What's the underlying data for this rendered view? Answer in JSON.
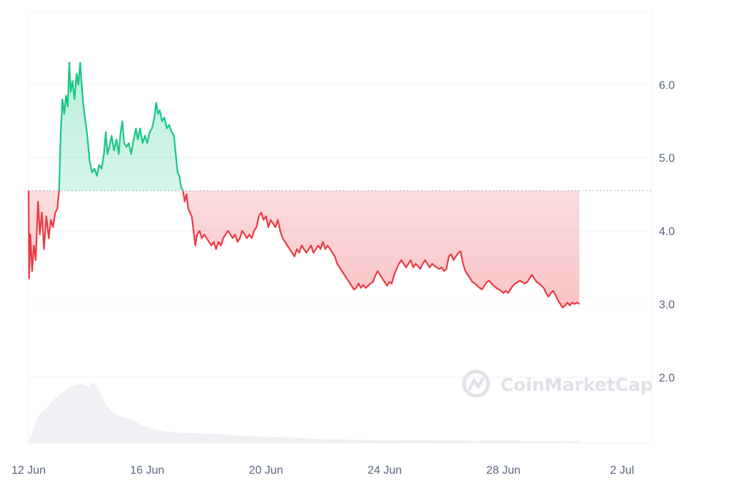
{
  "watermark": {
    "text": "CoinMarketCap"
  },
  "chart_data": {
    "type": "line",
    "title": "",
    "xlabel": "",
    "ylabel": "",
    "baseline": 4.55,
    "x_range": [
      0,
      21
    ],
    "x_unit": "days from 12 Jun",
    "ylim": [
      1.1,
      7.0
    ],
    "y_ticks": [
      {
        "value": 6.0,
        "label": "6.0"
      },
      {
        "value": 5.0,
        "label": "5.0"
      },
      {
        "value": 4.0,
        "label": "4.0"
      },
      {
        "value": 3.0,
        "label": "3.0"
      },
      {
        "value": 2.0,
        "label": "2.0"
      }
    ],
    "x_ticks": [
      {
        "value": 0,
        "label": "12 Jun"
      },
      {
        "value": 4,
        "label": "16 Jun"
      },
      {
        "value": 8,
        "label": "20 Jun"
      },
      {
        "value": 12,
        "label": "24 Jun"
      },
      {
        "value": 16,
        "label": "28 Jun"
      },
      {
        "value": 20,
        "label": "2 Jul"
      }
    ],
    "colors": {
      "up": "#16c784",
      "down": "#ea3943",
      "grid": "#eff2f5",
      "volume": "#eef0f3"
    },
    "grid": true,
    "series": [
      {
        "values": [
          [
            0.0,
            4.55
          ],
          [
            0.02,
            3.35
          ],
          [
            0.06,
            3.95
          ],
          [
            0.12,
            3.45
          ],
          [
            0.18,
            3.8
          ],
          [
            0.24,
            3.6
          ],
          [
            0.32,
            4.4
          ],
          [
            0.38,
            3.95
          ],
          [
            0.45,
            4.25
          ],
          [
            0.52,
            3.75
          ],
          [
            0.6,
            4.2
          ],
          [
            0.68,
            3.9
          ],
          [
            0.75,
            4.15
          ],
          [
            0.82,
            4.05
          ],
          [
            0.9,
            4.25
          ],
          [
            0.97,
            4.3
          ],
          [
            1.03,
            4.55
          ],
          [
            1.08,
            5.3
          ],
          [
            1.14,
            5.8
          ],
          [
            1.2,
            5.6
          ],
          [
            1.26,
            5.85
          ],
          [
            1.32,
            5.7
          ],
          [
            1.37,
            6.3
          ],
          [
            1.42,
            5.9
          ],
          [
            1.48,
            6.05
          ],
          [
            1.55,
            5.8
          ],
          [
            1.62,
            6.15
          ],
          [
            1.68,
            6.0
          ],
          [
            1.74,
            6.3
          ],
          [
            1.78,
            6.05
          ],
          [
            1.84,
            5.75
          ],
          [
            1.9,
            5.55
          ],
          [
            1.98,
            5.3
          ],
          [
            2.06,
            4.95
          ],
          [
            2.14,
            4.8
          ],
          [
            2.22,
            4.85
          ],
          [
            2.3,
            4.75
          ],
          [
            2.38,
            4.9
          ],
          [
            2.46,
            4.85
          ],
          [
            2.54,
            5.05
          ],
          [
            2.6,
            5.35
          ],
          [
            2.66,
            5.05
          ],
          [
            2.72,
            5.15
          ],
          [
            2.8,
            5.3
          ],
          [
            2.88,
            5.1
          ],
          [
            2.96,
            5.25
          ],
          [
            3.04,
            5.05
          ],
          [
            3.1,
            5.35
          ],
          [
            3.16,
            5.5
          ],
          [
            3.22,
            5.2
          ],
          [
            3.3,
            5.15
          ],
          [
            3.38,
            5.2
          ],
          [
            3.46,
            5.05
          ],
          [
            3.54,
            5.25
          ],
          [
            3.62,
            5.4
          ],
          [
            3.68,
            5.25
          ],
          [
            3.76,
            5.4
          ],
          [
            3.84,
            5.2
          ],
          [
            3.92,
            5.3
          ],
          [
            4.0,
            5.2
          ],
          [
            4.08,
            5.35
          ],
          [
            4.16,
            5.4
          ],
          [
            4.24,
            5.55
          ],
          [
            4.3,
            5.75
          ],
          [
            4.36,
            5.6
          ],
          [
            4.42,
            5.65
          ],
          [
            4.5,
            5.5
          ],
          [
            4.58,
            5.55
          ],
          [
            4.66,
            5.4
          ],
          [
            4.74,
            5.45
          ],
          [
            4.82,
            5.35
          ],
          [
            4.9,
            5.3
          ],
          [
            4.96,
            5.05
          ],
          [
            5.02,
            4.8
          ],
          [
            5.08,
            4.75
          ],
          [
            5.14,
            4.6
          ],
          [
            5.2,
            4.55
          ],
          [
            5.26,
            4.4
          ],
          [
            5.32,
            4.5
          ],
          [
            5.38,
            4.3
          ],
          [
            5.44,
            4.25
          ],
          [
            5.5,
            4.2
          ],
          [
            5.56,
            4.0
          ],
          [
            5.62,
            3.8
          ],
          [
            5.68,
            3.95
          ],
          [
            5.76,
            4.0
          ],
          [
            5.84,
            3.9
          ],
          [
            5.92,
            3.95
          ],
          [
            6.0,
            3.9
          ],
          [
            6.08,
            3.85
          ],
          [
            6.16,
            3.8
          ],
          [
            6.24,
            3.85
          ],
          [
            6.32,
            3.75
          ],
          [
            6.4,
            3.85
          ],
          [
            6.48,
            3.8
          ],
          [
            6.56,
            3.9
          ],
          [
            6.64,
            3.95
          ],
          [
            6.72,
            4.0
          ],
          [
            6.8,
            3.95
          ],
          [
            6.88,
            3.9
          ],
          [
            6.96,
            3.95
          ],
          [
            7.04,
            3.85
          ],
          [
            7.12,
            3.9
          ],
          [
            7.2,
            4.0
          ],
          [
            7.28,
            3.95
          ],
          [
            7.36,
            3.9
          ],
          [
            7.44,
            3.95
          ],
          [
            7.52,
            3.9
          ],
          [
            7.6,
            4.0
          ],
          [
            7.68,
            4.05
          ],
          [
            7.76,
            4.2
          ],
          [
            7.84,
            4.25
          ],
          [
            7.92,
            4.15
          ],
          [
            8.0,
            4.2
          ],
          [
            8.08,
            4.05
          ],
          [
            8.16,
            4.15
          ],
          [
            8.24,
            4.1
          ],
          [
            8.32,
            4.05
          ],
          [
            8.4,
            4.15
          ],
          [
            8.48,
            4.0
          ],
          [
            8.56,
            3.9
          ],
          [
            8.64,
            3.85
          ],
          [
            8.72,
            3.8
          ],
          [
            8.8,
            3.75
          ],
          [
            8.88,
            3.7
          ],
          [
            8.96,
            3.65
          ],
          [
            9.04,
            3.75
          ],
          [
            9.12,
            3.7
          ],
          [
            9.2,
            3.8
          ],
          [
            9.28,
            3.75
          ],
          [
            9.36,
            3.7
          ],
          [
            9.44,
            3.75
          ],
          [
            9.52,
            3.8
          ],
          [
            9.6,
            3.7
          ],
          [
            9.68,
            3.75
          ],
          [
            9.76,
            3.8
          ],
          [
            9.84,
            3.75
          ],
          [
            9.92,
            3.85
          ],
          [
            10.0,
            3.75
          ],
          [
            10.08,
            3.8
          ],
          [
            10.16,
            3.75
          ],
          [
            10.24,
            3.7
          ],
          [
            10.32,
            3.65
          ],
          [
            10.4,
            3.55
          ],
          [
            10.48,
            3.5
          ],
          [
            10.56,
            3.45
          ],
          [
            10.64,
            3.4
          ],
          [
            10.72,
            3.35
          ],
          [
            10.8,
            3.3
          ],
          [
            10.88,
            3.25
          ],
          [
            10.96,
            3.2
          ],
          [
            11.04,
            3.22
          ],
          [
            11.12,
            3.28
          ],
          [
            11.2,
            3.22
          ],
          [
            11.28,
            3.26
          ],
          [
            11.36,
            3.22
          ],
          [
            11.44,
            3.25
          ],
          [
            11.52,
            3.28
          ],
          [
            11.6,
            3.3
          ],
          [
            11.68,
            3.38
          ],
          [
            11.76,
            3.45
          ],
          [
            11.84,
            3.4
          ],
          [
            11.92,
            3.35
          ],
          [
            12.0,
            3.3
          ],
          [
            12.08,
            3.25
          ],
          [
            12.16,
            3.3
          ],
          [
            12.24,
            3.28
          ],
          [
            12.32,
            3.4
          ],
          [
            12.4,
            3.48
          ],
          [
            12.48,
            3.55
          ],
          [
            12.56,
            3.6
          ],
          [
            12.64,
            3.55
          ],
          [
            12.72,
            3.5
          ],
          [
            12.8,
            3.55
          ],
          [
            12.88,
            3.6
          ],
          [
            12.96,
            3.5
          ],
          [
            13.04,
            3.55
          ],
          [
            13.12,
            3.52
          ],
          [
            13.2,
            3.48
          ],
          [
            13.28,
            3.55
          ],
          [
            13.36,
            3.6
          ],
          [
            13.44,
            3.55
          ],
          [
            13.52,
            3.5
          ],
          [
            13.6,
            3.55
          ],
          [
            13.68,
            3.52
          ],
          [
            13.76,
            3.5
          ],
          [
            13.84,
            3.48
          ],
          [
            13.92,
            3.5
          ],
          [
            14.0,
            3.45
          ],
          [
            14.08,
            3.48
          ],
          [
            14.16,
            3.65
          ],
          [
            14.24,
            3.68
          ],
          [
            14.32,
            3.6
          ],
          [
            14.4,
            3.65
          ],
          [
            14.48,
            3.7
          ],
          [
            14.56,
            3.72
          ],
          [
            14.64,
            3.55
          ],
          [
            14.72,
            3.45
          ],
          [
            14.8,
            3.4
          ],
          [
            14.88,
            3.35
          ],
          [
            14.96,
            3.3
          ],
          [
            15.04,
            3.28
          ],
          [
            15.12,
            3.25
          ],
          [
            15.2,
            3.22
          ],
          [
            15.28,
            3.2
          ],
          [
            15.36,
            3.25
          ],
          [
            15.44,
            3.3
          ],
          [
            15.52,
            3.32
          ],
          [
            15.6,
            3.28
          ],
          [
            15.68,
            3.25
          ],
          [
            15.76,
            3.22
          ],
          [
            15.84,
            3.2
          ],
          [
            15.92,
            3.18
          ],
          [
            16.0,
            3.15
          ],
          [
            16.08,
            3.18
          ],
          [
            16.16,
            3.15
          ],
          [
            16.24,
            3.2
          ],
          [
            16.32,
            3.25
          ],
          [
            16.4,
            3.28
          ],
          [
            16.48,
            3.3
          ],
          [
            16.56,
            3.32
          ],
          [
            16.64,
            3.3
          ],
          [
            16.72,
            3.28
          ],
          [
            16.8,
            3.3
          ],
          [
            16.88,
            3.35
          ],
          [
            16.96,
            3.4
          ],
          [
            17.04,
            3.35
          ],
          [
            17.12,
            3.3
          ],
          [
            17.2,
            3.28
          ],
          [
            17.28,
            3.25
          ],
          [
            17.36,
            3.22
          ],
          [
            17.44,
            3.15
          ],
          [
            17.52,
            3.1
          ],
          [
            17.6,
            3.15
          ],
          [
            17.68,
            3.18
          ],
          [
            17.76,
            3.12
          ],
          [
            17.84,
            3.05
          ],
          [
            17.92,
            3.0
          ],
          [
            18.0,
            2.95
          ],
          [
            18.08,
            2.98
          ],
          [
            18.16,
            3.02
          ],
          [
            18.24,
            2.98
          ],
          [
            18.32,
            3.02
          ],
          [
            18.4,
            3.0
          ],
          [
            18.48,
            3.02
          ],
          [
            18.56,
            3.0
          ]
        ]
      }
    ],
    "volume": [
      [
        0.0,
        0.0
      ],
      [
        0.3,
        0.4
      ],
      [
        0.6,
        0.55
      ],
      [
        0.9,
        0.7
      ],
      [
        1.2,
        0.8
      ],
      [
        1.4,
        0.88
      ],
      [
        1.6,
        0.9
      ],
      [
        1.8,
        0.92
      ],
      [
        2.0,
        0.88
      ],
      [
        2.2,
        0.95
      ],
      [
        2.4,
        0.8
      ],
      [
        2.6,
        0.6
      ],
      [
        2.8,
        0.5
      ],
      [
        3.0,
        0.42
      ],
      [
        3.4,
        0.38
      ],
      [
        3.8,
        0.28
      ],
      [
        4.2,
        0.22
      ],
      [
        4.6,
        0.18
      ],
      [
        5.2,
        0.16
      ],
      [
        5.8,
        0.15
      ],
      [
        6.4,
        0.14
      ],
      [
        7.0,
        0.12
      ],
      [
        7.6,
        0.1
      ],
      [
        8.4,
        0.09
      ],
      [
        9.0,
        0.08
      ],
      [
        10.0,
        0.06
      ],
      [
        11.0,
        0.05
      ],
      [
        12.0,
        0.04
      ],
      [
        13.0,
        0.045
      ],
      [
        14.0,
        0.04
      ],
      [
        15.0,
        0.035
      ],
      [
        16.0,
        0.04
      ],
      [
        17.0,
        0.03
      ],
      [
        18.0,
        0.035
      ],
      [
        18.56,
        0.03
      ]
    ]
  }
}
